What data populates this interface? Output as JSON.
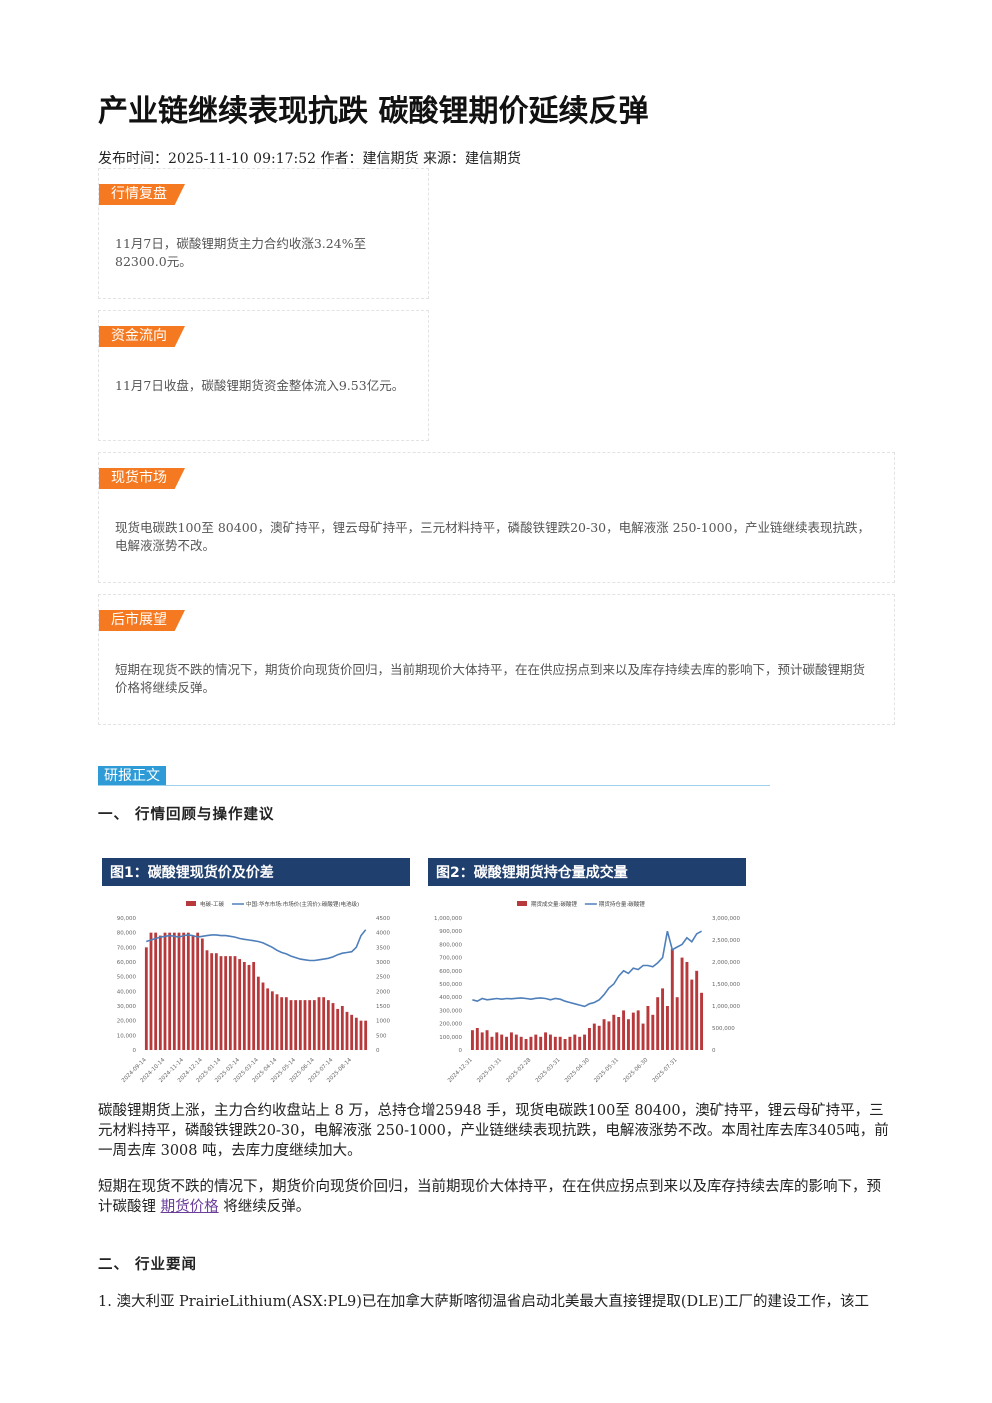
{
  "header": {
    "title": "产业链继续表现抗跌 碳酸锂期价延续反弹",
    "meta": "发布时间：2025-11-10 09:17:52 作者：建信期货 来源：建信期货"
  },
  "sections": [
    {
      "tag": "行情复盘",
      "text": "11月7日，碳酸锂期货主力合约收涨3.24%至82300.0元。"
    },
    {
      "tag": "资金流向",
      "text": "11月7日收盘，碳酸锂期货资金整体流入9.53亿元。"
    },
    {
      "tag": "现货市场",
      "text": "现货电碳跌100至 80400，澳矿持平，锂云母矿持平，三元材料持平，磷酸铁锂跌20-30，电解液涨 250-1000，产业链继续表现抗跌，电解液涨势不改。"
    },
    {
      "tag": "后市展望",
      "text": "短期在现货不跌的情况下，期货价向现货价回归，当前期现价大体持平，在在供应拐点到来以及库存持续去库的影响下，预计碳酸锂期货价格将继续反弹。"
    }
  ],
  "report": {
    "tag": "研报正文",
    "heading1": "一、 行情回顾与操作建议",
    "paragraph1": "碳酸锂期货上涨，主力合约收盘站上 8 万，总持仓增25948 手，现货电碳跌100至 80400，澳矿持平，锂云母矿持平，三元材料持平，磷酸铁锂跌20-30，电解液涨 250-1000，产业链继续表现抗跌，电解液涨势不改。本周社库去库3405吨，前一周去库 3008 吨，去库力度继续加大。",
    "paragraph2": {
      "before": "短期在现货不跌的情况下，期货价向现货价回归，当前期现价大体持平，在在供应拐点到来以及库存持续去库的影响下，预计碳酸锂 ",
      "link": "期货价格",
      "after": " 将继续反弹。"
    },
    "heading2": "二、 行业要闻",
    "item1": "1. 澳大利亚 PrairieLithium(ASX:PL9)已在加拿大萨斯喀彻温省启动北美最大直接锂提取(DLE)工厂的建设工作，该工"
  },
  "chart_data": [
    {
      "type": "combo",
      "title": "图1：碳酸锂现货价及价差",
      "categories": [
        "2024-09-14",
        null,
        null,
        null,
        "2024-10-14",
        null,
        null,
        null,
        "2024-11-14",
        null,
        null,
        null,
        "2024-12-14",
        null,
        null,
        null,
        "2025-01-14",
        null,
        null,
        null,
        "2025-02-14",
        null,
        null,
        null,
        "2025-03-14",
        null,
        null,
        null,
        "2025-04-14",
        null,
        null,
        null,
        "2025-05-14",
        null,
        null,
        null,
        "2025-06-14",
        null,
        null,
        null,
        "2025-07-14",
        null,
        null,
        null,
        "2025-08-14",
        null,
        null,
        null
      ],
      "series": [
        {
          "name": "电碳-工碳",
          "type": "bar",
          "axis": "y2",
          "color": "#b8393c",
          "values": [
            3500,
            4000,
            4000,
            3900,
            4000,
            4000,
            4000,
            4000,
            4000,
            4000,
            3900,
            4000,
            3800,
            3400,
            3300,
            3300,
            3200,
            3200,
            3200,
            3200,
            3100,
            3000,
            2900,
            3000,
            2500,
            2300,
            2100,
            2000,
            1900,
            1800,
            1800,
            1700,
            1700,
            1700,
            1700,
            1700,
            1700,
            1800,
            1800,
            1700,
            1600,
            1400,
            1500,
            1300,
            1200,
            1100,
            1000,
            1000
          ]
        },
        {
          "name": "中国:华东市场:市场价(主流价):碳酸锂(电池级)",
          "type": "line",
          "color": "#4f7fba",
          "values": [
            74000,
            75000,
            76000,
            77000,
            77500,
            78000,
            77500,
            77000,
            78000,
            78500,
            78000,
            77000,
            77500,
            78000,
            78500,
            78500,
            78000,
            78000,
            77500,
            77000,
            76000,
            75500,
            75000,
            74500,
            74000,
            73000,
            71500,
            70000,
            68000,
            66500,
            65500,
            64000,
            63000,
            62000,
            61500,
            61000,
            61000,
            61500,
            62000,
            62500,
            63500,
            65000,
            66000,
            66500,
            67000,
            70000,
            78000,
            82000
          ]
        }
      ],
      "ylim": [
        0,
        90000
      ],
      "yticks": [
        0,
        {
          "value": 10000,
          "label": "10,000"
        },
        {
          "value": 20000,
          "label": "20,000"
        },
        {
          "value": 30000,
          "label": "30,000"
        },
        {
          "value": 40000,
          "label": "40,000"
        },
        {
          "value": 50000,
          "label": "50,000"
        },
        {
          "value": 60000,
          "label": "60,000"
        },
        {
          "value": 70000,
          "label": "70,000"
        },
        {
          "value": 80000,
          "label": "80,000"
        },
        {
          "value": 90000,
          "label": "90,000"
        }
      ],
      "y2lim": [
        0,
        4500
      ],
      "y2ticks": [
        0,
        500,
        1000,
        1500,
        2000,
        2500,
        3000,
        3500,
        4000,
        4500
      ]
    },
    {
      "type": "combo",
      "title": "图2：碳酸锂期货持仓量成交量",
      "categories": [
        "2024-12-31",
        null,
        null,
        null,
        null,
        null,
        "2025-01-31",
        null,
        null,
        null,
        null,
        null,
        "2025-02-28",
        null,
        null,
        null,
        null,
        null,
        "2025-03-31",
        null,
        null,
        null,
        null,
        null,
        "2025-04-30",
        null,
        null,
        null,
        null,
        null,
        "2025-05-31",
        null,
        null,
        null,
        null,
        null,
        "2025-06-30",
        null,
        null,
        null,
        null,
        null,
        "2025-07-31",
        null,
        null,
        null,
        null,
        null
      ],
      "series": [
        {
          "name": "期货成交量:碳酸锂",
          "type": "bar",
          "axis": "y2",
          "color": "#b8393c",
          "values": [
            450000,
            500000,
            400000,
            450000,
            300000,
            400000,
            350000,
            300000,
            400000,
            350000,
            300000,
            250000,
            300000,
            350000,
            300000,
            400000,
            350000,
            300000,
            300000,
            250000,
            300000,
            350000,
            300000,
            350000,
            500000,
            600000,
            550000,
            700000,
            650000,
            800000,
            750000,
            900000,
            700000,
            850000,
            900000,
            600000,
            1000000,
            800000,
            1200000,
            1400000,
            1000000,
            2300000,
            1200000,
            2100000,
            2000000,
            1600000,
            1800000,
            1300000
          ]
        },
        {
          "name": "期货持仓量:碳酸锂",
          "type": "line",
          "color": "#4f7fba",
          "values": [
            380000,
            370000,
            390000,
            380000,
            385000,
            390000,
            385000,
            390000,
            388000,
            392000,
            395000,
            390000,
            385000,
            392000,
            395000,
            390000,
            380000,
            390000,
            385000,
            370000,
            360000,
            350000,
            340000,
            330000,
            350000,
            360000,
            380000,
            420000,
            470000,
            500000,
            560000,
            600000,
            580000,
            620000,
            610000,
            640000,
            640000,
            630000,
            660000,
            700000,
            900000,
            760000,
            780000,
            800000,
            850000,
            820000,
            880000,
            900000
          ]
        }
      ],
      "ylim": [
        0,
        1000000
      ],
      "yticks": [
        0,
        {
          "value": 100000,
          "label": "100,000"
        },
        {
          "value": 200000,
          "label": "200,000"
        },
        {
          "value": 300000,
          "label": "300,000"
        },
        {
          "value": 400000,
          "label": "400,000"
        },
        {
          "value": 500000,
          "label": "500,000"
        },
        {
          "value": 600000,
          "label": "600,000"
        },
        {
          "value": 700000,
          "label": "700,000"
        },
        {
          "value": 800000,
          "label": "800,000"
        },
        {
          "value": 900000,
          "label": "900,000"
        },
        {
          "value": 1000000,
          "label": "1,000,000"
        }
      ],
      "y2lim": [
        0,
        3000000
      ],
      "y2ticks": [
        0,
        {
          "value": 500000,
          "label": "500,000"
        },
        {
          "value": 1000000,
          "label": "1,000,000"
        },
        {
          "value": 1500000,
          "label": "1,500,000"
        },
        {
          "value": 2000000,
          "label": "2,000,000"
        },
        {
          "value": 2500000,
          "label": "2,500,000"
        },
        {
          "value": 3000000,
          "label": "3,000,000"
        }
      ]
    }
  ]
}
